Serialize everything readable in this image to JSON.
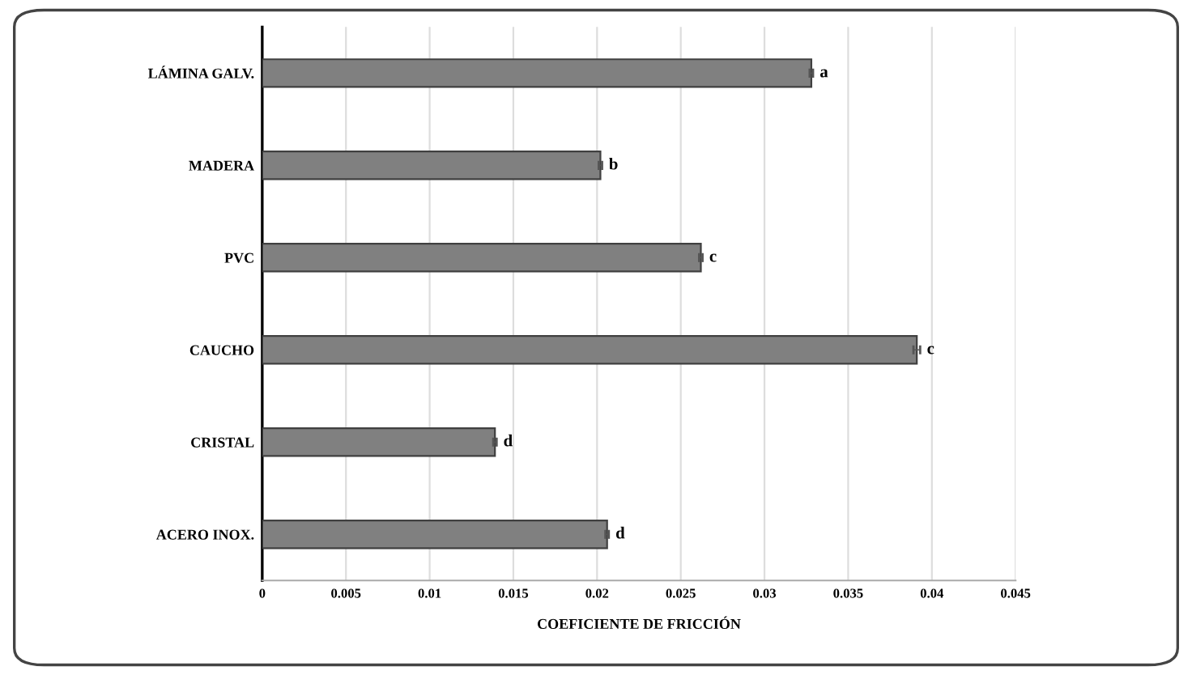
{
  "chart_data": {
    "type": "bar",
    "orientation": "horizontal",
    "xlabel": "COEFICIENTE DE FRICCIÓN",
    "categories": [
      "LÁMINA GALV.",
      "MADERA",
      "PVC",
      "CAUCHO",
      "CRISTAL",
      "ACERO INOX."
    ],
    "values": [
      0.0328,
      0.0202,
      0.0262,
      0.0391,
      0.0139,
      0.0206
    ],
    "errors": [
      0.0001,
      0.0001,
      0.0001,
      0.0002,
      0.0001,
      0.0001
    ],
    "color": "#808080",
    "xlim": [
      0,
      0.045
    ],
    "xticks": [
      0,
      0.005,
      0.01,
      0.015,
      0.02,
      0.025,
      0.03,
      0.035,
      0.04,
      0.045
    ],
    "grid": "x",
    "annotations": [
      {
        "text": "a",
        "x": 0.0328,
        "y": "LÁMINA GALV."
      },
      {
        "text": "b",
        "x": 0.0202,
        "y": "MADERA"
      },
      {
        "text": "c",
        "x": 0.0262,
        "y": "PVC"
      },
      {
        "text": "c",
        "x": 0.0391,
        "y": "CAUCHO"
      },
      {
        "text": "d",
        "x": 0.0139,
        "y": "CRISTAL"
      },
      {
        "text": "d",
        "x": 0.0206,
        "y": "ACERO INOX."
      }
    ]
  }
}
